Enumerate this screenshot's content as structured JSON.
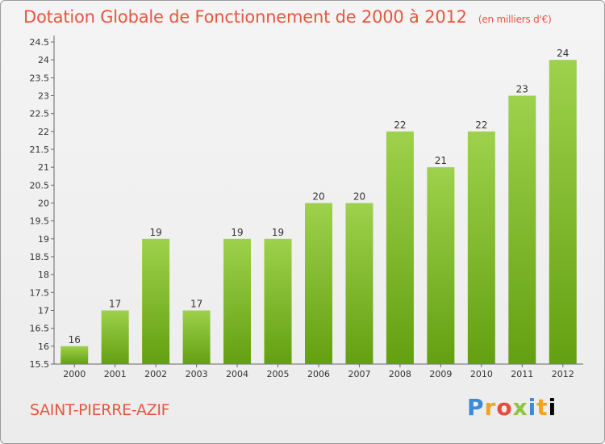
{
  "header": {
    "title": "Dotation Globale de Fonctionnement de 2000 à 2012",
    "unit": "(en milliers d'€)"
  },
  "footer": {
    "commune": "SAINT-PIERRE-AZIF",
    "logo_letters": [
      "P",
      "r",
      "o",
      "x",
      "i",
      "t",
      "i"
    ]
  },
  "colors": {
    "title": "#e8563f",
    "bar_top": "#9ed14c",
    "bar_bottom": "#63a011",
    "axis": "#666666"
  },
  "chart_data": {
    "type": "bar",
    "categories": [
      "2000",
      "2001",
      "2002",
      "2003",
      "2004",
      "2005",
      "2006",
      "2007",
      "2008",
      "2009",
      "2010",
      "2011",
      "2012"
    ],
    "values": [
      16,
      17,
      19,
      17,
      19,
      19,
      20,
      20,
      22,
      21,
      22,
      23,
      24
    ],
    "data_labels": [
      "16",
      "17",
      "19",
      "17",
      "19",
      "19",
      "20",
      "20",
      "22",
      "21",
      "22",
      "23",
      "24"
    ],
    "ylim": [
      15.5,
      24.5
    ],
    "ytick_labels": [
      "15.5",
      "16",
      "16.5",
      "17",
      "17.5",
      "18",
      "18.5",
      "19",
      "19.5",
      "20",
      "20.5",
      "21",
      "21.5",
      "22",
      "22.5",
      "23",
      "23.5",
      "24",
      "24.5"
    ],
    "grid": false,
    "legend": "none"
  }
}
